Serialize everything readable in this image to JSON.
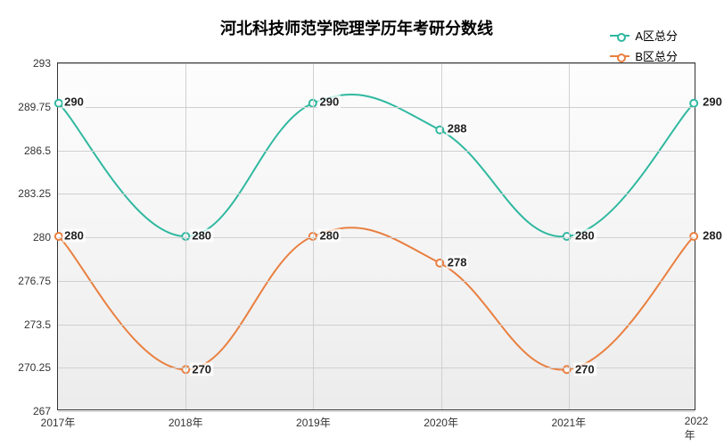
{
  "chart": {
    "type": "line",
    "title": "河北科技师范学院理学历年考研分数线",
    "title_fontsize": 18,
    "background_color": "#ffffff",
    "plot_bg_gradient": [
      "#fdfdfd",
      "#ececec"
    ],
    "border_color": "#333333",
    "grid_color": "#d0d0d0",
    "label_fontsize": 12,
    "data_label_fontsize": 13,
    "line_width": 2,
    "marker_radius": 4,
    "x": {
      "categories": [
        "2017年",
        "2018年",
        "2019年",
        "2020年",
        "2021年",
        "2022年"
      ]
    },
    "y": {
      "min": 267,
      "max": 293,
      "ticks": [
        267,
        270.25,
        273.5,
        276.75,
        280,
        283.25,
        286.5,
        289.75,
        293
      ]
    },
    "series": [
      {
        "name": "A区总分",
        "color": "#2fb8a0",
        "values": [
          290,
          280,
          290,
          288,
          280,
          290
        ]
      },
      {
        "name": "B区总分",
        "color": "#e97f40",
        "values": [
          280,
          270,
          280,
          278,
          270,
          280
        ]
      }
    ],
    "legend": {
      "position": "top-right"
    }
  }
}
